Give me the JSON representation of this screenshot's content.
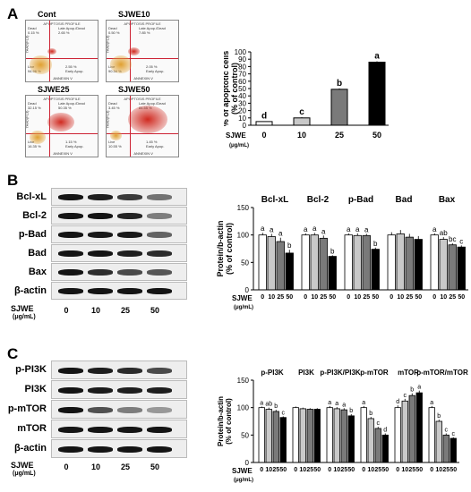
{
  "panel_a": {
    "letter": "A",
    "flow_plots": [
      {
        "title": "Cont",
        "subtitle": "APOPTOSIS PROFILE",
        "q_ul": "Dead\n0.15 %",
        "q_ur": "Late Apop./Dead\n2.65 %",
        "q_ll": "Live\n94.96 %",
        "q_lr": "2.55 %\nEarly Apop.",
        "level": 0.05
      },
      {
        "title": "SJWE10",
        "subtitle": "APOPTOSIS PROFILE",
        "q_ul": "Dead\n0.50 %",
        "q_ur": "Late Apop./Dead\n7.85 %",
        "q_ll": "Live\n90.34 %",
        "q_lr": "2.05 %\nEarly Apop.",
        "level": 0.12
      },
      {
        "title": "SJWE25",
        "subtitle": "APOPTOSIS PROFILE",
        "q_ul": "Dead\n32.15 %",
        "q_ur": "Late Apop./Dead\n50.35 %",
        "q_ll": "Live\n16.35 %",
        "q_lr": "1.15 %\nEarly Apop.",
        "level": 0.55
      },
      {
        "title": "SJWE50",
        "subtitle": "APOPTOSIS PROFILE",
        "q_ul": "Dead\n3.45 %",
        "q_ur": "Late Apop./Dead\n84.55 %",
        "q_ll": "Live\n10.55 %",
        "q_lr": "1.45 %\nEarly Apop.",
        "level": 0.9
      }
    ],
    "axis_y": "7AAD(FL3)",
    "axis_x": "ANNEXIN V"
  },
  "panel_b": {
    "letter": "B",
    "blot_labels": [
      "Bcl-xL",
      "Bcl-2",
      "p-Bad",
      "Bad",
      "Bax",
      "β-actin"
    ],
    "band_intensity": [
      [
        1.0,
        0.97,
        0.88,
        0.67
      ],
      [
        1.0,
        1.0,
        0.95,
        0.62
      ],
      [
        1.0,
        0.99,
        0.99,
        0.73
      ],
      [
        1.0,
        1.0,
        0.97,
        0.93
      ],
      [
        1.0,
        0.92,
        0.82,
        0.78
      ],
      [
        1.0,
        1.0,
        1.0,
        1.0
      ]
    ]
  },
  "panel_c": {
    "letter": "C",
    "blot_labels": [
      "p-PI3K",
      "PI3K",
      "p-mTOR",
      "mTOR",
      "β-actin"
    ],
    "band_intensity": [
      [
        1.0,
        0.97,
        0.93,
        0.82
      ],
      [
        1.0,
        0.98,
        0.97,
        0.97
      ],
      [
        1.0,
        0.8,
        0.62,
        0.5
      ],
      [
        1.0,
        1.0,
        1.0,
        1.0
      ],
      [
        1.0,
        1.0,
        1.0,
        1.0
      ]
    ]
  },
  "treatment": {
    "label": "SJWE",
    "unit": "(μg/mL)",
    "doses": [
      "0",
      "10",
      "25",
      "50"
    ]
  },
  "colors": {
    "dose_0": "#ffffff",
    "dose_10": "#c9c9c9",
    "dose_25": "#7a7a7a",
    "dose_50": "#000000",
    "gate_line": "#cc2233",
    "live_cloud": "#e0a030",
    "dead_cloud": "#d02a20"
  },
  "chart_data": [
    {
      "type": "bar",
      "id": "apoptosis",
      "ylabel": "% of apoptotic cells\n(% of control)",
      "ylim": [
        0,
        100
      ],
      "yticks": [
        0,
        10,
        20,
        30,
        40,
        50,
        60,
        70,
        80,
        90,
        100
      ],
      "categories": [
        "0",
        "10",
        "25",
        "50"
      ],
      "values": [
        5,
        10,
        49,
        86
      ],
      "letters": [
        "d",
        "c",
        "b",
        "a"
      ],
      "errors": [
        0.5,
        0.8,
        1.2,
        1.0
      ],
      "xlabel": "SJWE",
      "xunit": "(μg/mL)"
    },
    {
      "type": "bar",
      "id": "bcl_family",
      "ylabel": "Protein/b-actin\n(% of control)",
      "ylim": [
        0,
        150
      ],
      "yticks": [
        0,
        50,
        100,
        150
      ],
      "categories": [
        "0",
        "10",
        "25",
        "50"
      ],
      "groups": [
        {
          "name": "Bcl-xL",
          "values": [
            100,
            97,
            88,
            67
          ],
          "errors": [
            4,
            5,
            7,
            6
          ],
          "letters": [
            "a",
            "a",
            "a",
            "b"
          ]
        },
        {
          "name": "Bcl-2",
          "values": [
            100,
            100,
            94,
            61
          ],
          "errors": [
            3,
            4,
            5,
            2
          ],
          "letters": [
            "a",
            "a",
            "a",
            "b"
          ]
        },
        {
          "name": "p-Bad",
          "values": [
            100,
            99,
            99,
            74
          ],
          "errors": [
            3,
            4,
            3,
            3
          ],
          "letters": [
            "a",
            "a",
            "a",
            "b"
          ]
        },
        {
          "name": "Bad",
          "values": [
            100,
            102,
            96,
            92
          ],
          "errors": [
            5,
            7,
            6,
            6
          ],
          "letters": [
            "",
            "",
            "",
            ""
          ]
        },
        {
          "name": "Bax",
          "values": [
            100,
            92,
            82,
            78
          ],
          "errors": [
            3,
            4,
            3,
            3
          ],
          "letters": [
            "a",
            "ab",
            "bc",
            "c"
          ]
        }
      ],
      "xlabel": "SJWE",
      "xunit": "(μg/mL)"
    },
    {
      "type": "bar",
      "id": "pi3k_mtor",
      "ylabel": "Protein/b-actin\n(% of control)",
      "ylim": [
        0,
        150
      ],
      "yticks": [
        0,
        50,
        100,
        150
      ],
      "categories": [
        "0",
        "10",
        "25",
        "50"
      ],
      "groups": [
        {
          "name": "p-PI3K",
          "values": [
            100,
            97,
            93,
            82
          ],
          "errors": [
            2,
            3,
            3,
            2
          ],
          "letters": [
            "a",
            "ab",
            "b",
            "c"
          ]
        },
        {
          "name": "PI3K",
          "values": [
            100,
            98,
            97,
            97
          ],
          "errors": [
            2,
            2,
            2,
            2
          ],
          "letters": [
            "",
            "",
            "",
            ""
          ]
        },
        {
          "name": "p-PI3K/PI3K",
          "values": [
            100,
            98,
            96,
            85
          ],
          "errors": [
            3,
            3,
            3,
            3
          ],
          "letters": [
            "a",
            "a",
            "a",
            "b"
          ]
        },
        {
          "name": "p-mTOR",
          "values": [
            100,
            80,
            62,
            50
          ],
          "errors": [
            3,
            3,
            3,
            3
          ],
          "letters": [
            "a",
            "b",
            "c",
            "d"
          ]
        },
        {
          "name": "mTOR",
          "values": [
            100,
            112,
            122,
            127
          ],
          "errors": [
            4,
            4,
            4,
            4
          ],
          "letters": [
            "d",
            "c",
            "b",
            "a"
          ]
        },
        {
          "name": "p-mTOR/mTOR",
          "values": [
            100,
            75,
            50,
            44
          ],
          "errors": [
            3,
            3,
            3,
            2
          ],
          "letters": [
            "a",
            "b",
            "c",
            "c"
          ]
        }
      ],
      "xlabel": "SJWE",
      "xunit": "(μg/mL)"
    }
  ]
}
